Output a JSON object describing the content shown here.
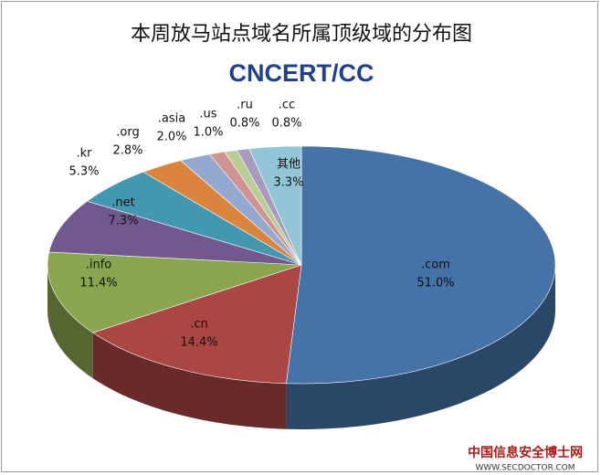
{
  "chart_data": {
    "type": "pie3d",
    "title": "本周放马站点域名所属顶级域的分布图",
    "logo": "CNCERT/CC",
    "categories": [
      ".com",
      ".cn",
      ".info",
      ".net",
      ".kr",
      ".org",
      ".asia",
      ".us",
      ".ru",
      ".cc",
      "其他"
    ],
    "values": [
      51.0,
      14.4,
      11.4,
      7.3,
      5.3,
      2.8,
      2.0,
      1.0,
      0.8,
      0.8,
      3.3
    ],
    "value_labels": [
      "51.0%",
      "14.4%",
      "11.4%",
      "7.3%",
      "5.3%",
      "2.8%",
      "2.0%",
      "1.0%",
      "0.8%",
      "0.8%",
      "3.3%"
    ],
    "colors": [
      "#4572a7",
      "#aa4643",
      "#89a54e",
      "#71588f",
      "#4198af",
      "#db843d",
      "#93a9cf",
      "#d19392",
      "#b9cd96",
      "#a99bbd",
      "#92c5d6"
    ],
    "watermark": {
      "name": "中国信息安全博士网",
      "url": "WWW.SECDOCTOR.COM"
    }
  }
}
